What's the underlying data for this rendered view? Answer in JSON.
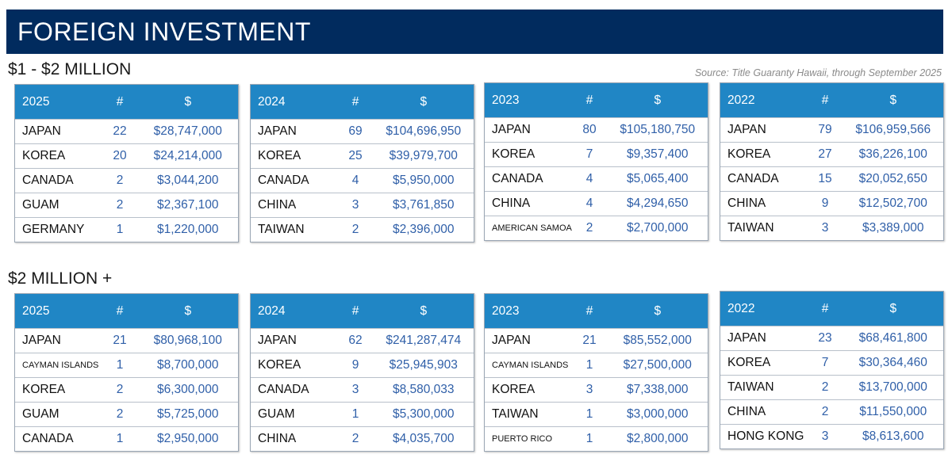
{
  "title": "FOREIGN INVESTMENT",
  "source": "Source: Title Guaranty Hawaii, through September 2025",
  "colors": {
    "banner": "#012b5e",
    "header": "#2086c5",
    "value_text": "#2f5fa8"
  },
  "chart_data": {
    "type": "table",
    "columns": [
      "#",
      "$"
    ],
    "sections": [
      {
        "title": "$1 - $2 MILLION",
        "tables": [
          {
            "year": "2025",
            "rows": [
              {
                "country": "JAPAN",
                "count": "22",
                "amount": "$28,747,000"
              },
              {
                "country": "KOREA",
                "count": "20",
                "amount": "$24,214,000"
              },
              {
                "country": "CANADA",
                "count": "2",
                "amount": "$3,044,200"
              },
              {
                "country": "GUAM",
                "count": "2",
                "amount": "$2,367,100"
              },
              {
                "country": "GERMANY",
                "count": "1",
                "amount": "$1,220,000"
              }
            ]
          },
          {
            "year": "2024",
            "rows": [
              {
                "country": "JAPAN",
                "count": "69",
                "amount": "$104,696,950"
              },
              {
                "country": "KOREA",
                "count": "25",
                "amount": "$39,979,700"
              },
              {
                "country": "CANADA",
                "count": "4",
                "amount": "$5,950,000"
              },
              {
                "country": "CHINA",
                "count": "3",
                "amount": "$3,761,850"
              },
              {
                "country": "TAIWAN",
                "count": "2",
                "amount": "$2,396,000"
              }
            ]
          },
          {
            "year": "2023",
            "rows": [
              {
                "country": "JAPAN",
                "count": "80",
                "amount": "$105,180,750"
              },
              {
                "country": "KOREA",
                "count": "7",
                "amount": "$9,357,400"
              },
              {
                "country": "CANADA",
                "count": "4",
                "amount": "$5,065,400"
              },
              {
                "country": "CHINA",
                "count": "4",
                "amount": "$4,294,650"
              },
              {
                "country": "AMERICAN SAMOA",
                "count": "2",
                "amount": "$2,700,000"
              }
            ]
          },
          {
            "year": "2022",
            "rows": [
              {
                "country": "JAPAN",
                "count": "79",
                "amount": "$106,959,566"
              },
              {
                "country": "KOREA",
                "count": "27",
                "amount": "$36,226,100"
              },
              {
                "country": "CANADA",
                "count": "15",
                "amount": "$20,052,650"
              },
              {
                "country": "CHINA",
                "count": "9",
                "amount": "$12,502,700"
              },
              {
                "country": "TAIWAN",
                "count": "3",
                "amount": "$3,389,000"
              }
            ]
          }
        ]
      },
      {
        "title": "$2 MILLION +",
        "tables": [
          {
            "year": "2025",
            "rows": [
              {
                "country": "JAPAN",
                "count": "21",
                "amount": "$80,968,100"
              },
              {
                "country": "CAYMAN ISLANDS",
                "count": "1",
                "amount": "$8,700,000"
              },
              {
                "country": "KOREA",
                "count": "2",
                "amount": "$6,300,000"
              },
              {
                "country": "GUAM",
                "count": "2",
                "amount": "$5,725,000"
              },
              {
                "country": "CANADA",
                "count": "1",
                "amount": "$2,950,000"
              }
            ]
          },
          {
            "year": "2024",
            "rows": [
              {
                "country": "JAPAN",
                "count": "62",
                "amount": "$241,287,474"
              },
              {
                "country": "KOREA",
                "count": "9",
                "amount": "$25,945,903"
              },
              {
                "country": "CANADA",
                "count": "3",
                "amount": "$8,580,033"
              },
              {
                "country": "GUAM",
                "count": "1",
                "amount": "$5,300,000"
              },
              {
                "country": "CHINA",
                "count": "2",
                "amount": "$4,035,700"
              }
            ]
          },
          {
            "year": "2023",
            "rows": [
              {
                "country": "JAPAN",
                "count": "21",
                "amount": "$85,552,000"
              },
              {
                "country": "CAYMAN ISLANDS",
                "count": "1",
                "amount": "$27,500,000"
              },
              {
                "country": "KOREA",
                "count": "3",
                "amount": "$7,338,000"
              },
              {
                "country": "TAIWAN",
                "count": "1",
                "amount": "$3,000,000"
              },
              {
                "country": "PUERTO RICO",
                "count": "1",
                "amount": "$2,800,000"
              }
            ]
          },
          {
            "year": "2022",
            "rows": [
              {
                "country": "JAPAN",
                "count": "23",
                "amount": "$68,461,800"
              },
              {
                "country": "KOREA",
                "count": "7",
                "amount": "$30,364,460"
              },
              {
                "country": "TAIWAN",
                "count": "2",
                "amount": "$13,700,000"
              },
              {
                "country": "CHINA",
                "count": "2",
                "amount": "$11,550,000"
              },
              {
                "country": "HONG KONG",
                "count": "3",
                "amount": "$8,613,600"
              }
            ]
          }
        ]
      }
    ]
  }
}
